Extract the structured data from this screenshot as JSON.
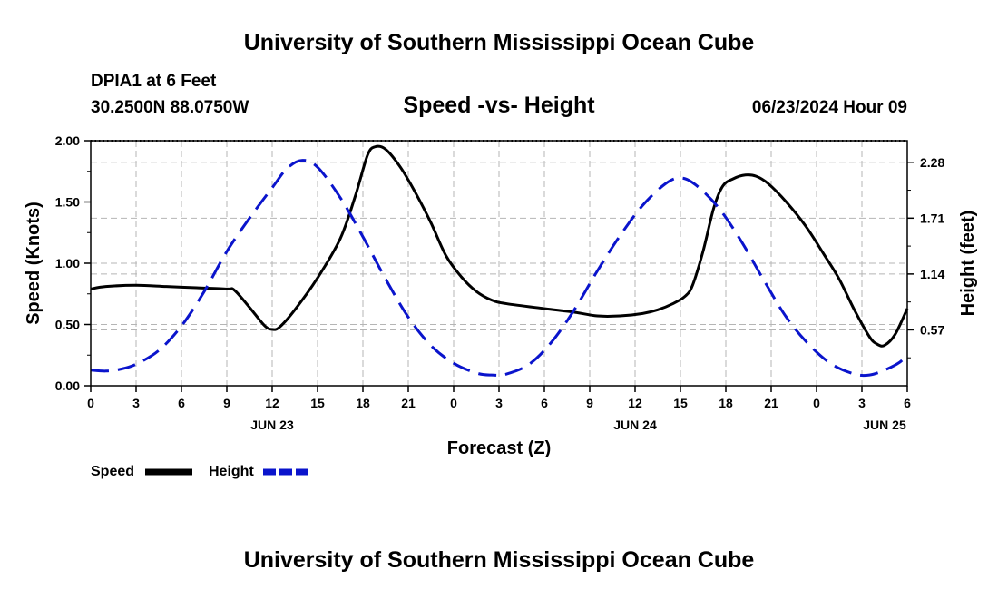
{
  "header": {
    "title": "University of Southern Mississippi Ocean Cube",
    "station": "DPIA1 at 6 Feet",
    "coords": "30.2500N  88.0750W",
    "datetime": "06/23/2024 Hour 09",
    "footer_title": "University of Southern Mississippi Ocean Cube"
  },
  "chart_data": {
    "type": "line",
    "title": "Speed -vs- Height",
    "xlabel": "Forecast (Z)",
    "ylabel": "Speed (Knots)",
    "y2label": "Height (feet)",
    "x_unit": "hours since 06/23 00Z",
    "xlim": [
      0,
      54
    ],
    "ylim": [
      0,
      2.0
    ],
    "y2lim": [
      0,
      2.5
    ],
    "grid": true,
    "x_ticks": [
      {
        "x": 0,
        "label": "0"
      },
      {
        "x": 3,
        "label": "3"
      },
      {
        "x": 6,
        "label": "6"
      },
      {
        "x": 9,
        "label": "9"
      },
      {
        "x": 12,
        "label": "12"
      },
      {
        "x": 15,
        "label": "15"
      },
      {
        "x": 18,
        "label": "18"
      },
      {
        "x": 21,
        "label": "21"
      },
      {
        "x": 24,
        "label": "0"
      },
      {
        "x": 27,
        "label": "3"
      },
      {
        "x": 30,
        "label": "6"
      },
      {
        "x": 33,
        "label": "9"
      },
      {
        "x": 36,
        "label": "12"
      },
      {
        "x": 39,
        "label": "15"
      },
      {
        "x": 42,
        "label": "18"
      },
      {
        "x": 45,
        "label": "21"
      },
      {
        "x": 48,
        "label": "0"
      },
      {
        "x": 51,
        "label": "3"
      },
      {
        "x": 54,
        "label": "6"
      }
    ],
    "date_labels": [
      {
        "x": 12,
        "label": "JUN 23"
      },
      {
        "x": 36,
        "label": "JUN 24"
      },
      {
        "x": 52.5,
        "label": "JUN 25"
      }
    ],
    "y_ticks": [
      {
        "y": 0.0,
        "label": "0.00"
      },
      {
        "y": 0.5,
        "label": "0.50"
      },
      {
        "y": 1.0,
        "label": "1.00"
      },
      {
        "y": 1.5,
        "label": "1.50"
      },
      {
        "y": 2.0,
        "label": "2.00"
      }
    ],
    "y2_ticks": [
      {
        "y": 0.57,
        "label": "0.57"
      },
      {
        "y": 1.14,
        "label": "1.14"
      },
      {
        "y": 1.71,
        "label": "1.71"
      },
      {
        "y": 2.28,
        "label": "2.28"
      }
    ],
    "series": [
      {
        "name": "Speed",
        "axis": "left",
        "color": "#000000",
        "dash": "solid",
        "points": [
          [
            0,
            0.79
          ],
          [
            1,
            0.81
          ],
          [
            3,
            0.82
          ],
          [
            5,
            0.81
          ],
          [
            7,
            0.8
          ],
          [
            9,
            0.79
          ],
          [
            9.5,
            0.78
          ],
          [
            10.5,
            0.64
          ],
          [
            11.5,
            0.49
          ],
          [
            12,
            0.46
          ],
          [
            12.5,
            0.48
          ],
          [
            13.5,
            0.62
          ],
          [
            15,
            0.88
          ],
          [
            16.5,
            1.2
          ],
          [
            17.5,
            1.55
          ],
          [
            18.3,
            1.88
          ],
          [
            18.8,
            1.95
          ],
          [
            19.5,
            1.93
          ],
          [
            20.5,
            1.78
          ],
          [
            21.5,
            1.57
          ],
          [
            22.5,
            1.33
          ],
          [
            23.5,
            1.06
          ],
          [
            24.5,
            0.89
          ],
          [
            25.5,
            0.77
          ],
          [
            26.5,
            0.7
          ],
          [
            27.5,
            0.67
          ],
          [
            30,
            0.63
          ],
          [
            32,
            0.6
          ],
          [
            33.5,
            0.57
          ],
          [
            35,
            0.57
          ],
          [
            36.5,
            0.59
          ],
          [
            37.5,
            0.62
          ],
          [
            38.5,
            0.67
          ],
          [
            39.3,
            0.73
          ],
          [
            39.8,
            0.82
          ],
          [
            40.5,
            1.1
          ],
          [
            41.2,
            1.45
          ],
          [
            41.8,
            1.63
          ],
          [
            42.5,
            1.69
          ],
          [
            43.3,
            1.72
          ],
          [
            44,
            1.71
          ],
          [
            44.8,
            1.65
          ],
          [
            46,
            1.5
          ],
          [
            47.3,
            1.3
          ],
          [
            48.5,
            1.07
          ],
          [
            49.5,
            0.87
          ],
          [
            50.5,
            0.62
          ],
          [
            51.5,
            0.4
          ],
          [
            52,
            0.34
          ],
          [
            52.5,
            0.33
          ],
          [
            53.2,
            0.42
          ],
          [
            54,
            0.63
          ]
        ]
      },
      {
        "name": "Height",
        "axis": "right",
        "color": "#0a14cc",
        "dash": "dashed",
        "points": [
          [
            0,
            0.16
          ],
          [
            1,
            0.15
          ],
          [
            2,
            0.17
          ],
          [
            3,
            0.22
          ],
          [
            4.5,
            0.36
          ],
          [
            6,
            0.61
          ],
          [
            7.5,
            0.96
          ],
          [
            9,
            1.37
          ],
          [
            10.5,
            1.71
          ],
          [
            12,
            2.02
          ],
          [
            13,
            2.22
          ],
          [
            14,
            2.3
          ],
          [
            15,
            2.23
          ],
          [
            16.5,
            1.92
          ],
          [
            18,
            1.52
          ],
          [
            19.5,
            1.09
          ],
          [
            21,
            0.7
          ],
          [
            22.5,
            0.41
          ],
          [
            24,
            0.23
          ],
          [
            25.5,
            0.13
          ],
          [
            26.5,
            0.11
          ],
          [
            27.5,
            0.12
          ],
          [
            29,
            0.22
          ],
          [
            30.5,
            0.45
          ],
          [
            32,
            0.78
          ],
          [
            33.5,
            1.17
          ],
          [
            35,
            1.53
          ],
          [
            36.5,
            1.84
          ],
          [
            38,
            2.06
          ],
          [
            39,
            2.12
          ],
          [
            40,
            2.05
          ],
          [
            41.5,
            1.82
          ],
          [
            43,
            1.48
          ],
          [
            44.5,
            1.08
          ],
          [
            46,
            0.7
          ],
          [
            47.5,
            0.42
          ],
          [
            49,
            0.22
          ],
          [
            50.5,
            0.12
          ],
          [
            51.5,
            0.11
          ],
          [
            52.5,
            0.16
          ],
          [
            53.5,
            0.24
          ],
          [
            54,
            0.32
          ]
        ]
      }
    ],
    "legend": [
      {
        "label": "Speed",
        "color": "#000000",
        "dash": "solid"
      },
      {
        "label": "Height",
        "color": "#0a14cc",
        "dash": "dashed"
      }
    ]
  }
}
